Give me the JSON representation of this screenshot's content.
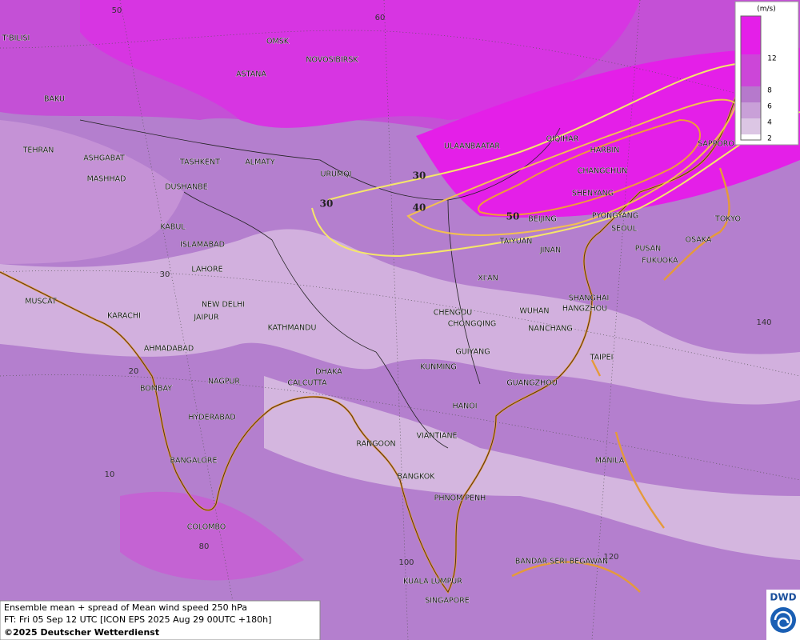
{
  "map": {
    "grid_labels": [
      "50",
      "60",
      "30",
      "20",
      "10",
      "80",
      "100",
      "120",
      "140"
    ],
    "cities": [
      "OMSK",
      "NOVOSIBIRSK",
      "ASTANA",
      "T'BILISI",
      "BAKU",
      "TEHRAN",
      "ASHGABAT",
      "MASHHAD",
      "TASHKENT",
      "ALMATY",
      "DUSHANBE",
      "URUMQI",
      "ULAANBAATAR",
      "QIQIHAR",
      "HARBIN",
      "CHANGCHUN",
      "SHENYANG",
      "SAPPORO",
      "BEIJING",
      "PYONGYANG",
      "SEOUL",
      "TOKYO",
      "OSAKA",
      "PUSAN",
      "FUKUOKA",
      "TAIYUAN",
      "JINAN",
      "KABUL",
      "ISLAMABAD",
      "LAHORE",
      "XI'AN",
      "NEW DELHI",
      "JAIPUR",
      "MUSCAT",
      "KARACHI",
      "KATHMANDU",
      "CHENGDU",
      "CHONGQING",
      "WUHAN",
      "SHANGHAI",
      "HANGZHOU",
      "NANCHANG",
      "AHMADABAD",
      "GUIYANG",
      "TAIPEI",
      "KUNMING",
      "NAGPUR",
      "DHAKA",
      "CALCUTTA",
      "GUANGZHOU",
      "BOMBAY",
      "HYDERABAD",
      "HANOI",
      "RANGOON",
      "VIANTIANE",
      "MANILA",
      "BANGALORE",
      "BANGKOK",
      "PHNOM PENH",
      "COLOMBO",
      "BANDAR SERI BEGAWAN",
      "KUALA LUMPUR",
      "SINGAPORE"
    ],
    "contour_labels": [
      "30",
      "30",
      "40",
      "50"
    ]
  },
  "legend": {
    "unit": "(m/s)",
    "ticks": [
      "12",
      "8",
      "6",
      "4",
      "2"
    ]
  },
  "caption": {
    "lines": [
      "Ensemble mean + spread of Mean wind speed 250 hPa",
      "FT: Fri 05 Sep 12 UTC [ICON EPS 2025 Aug 29 00UTC +180h]",
      "©2025 Deutscher Wetterdienst"
    ]
  },
  "logo": {
    "text": "DWD"
  }
}
